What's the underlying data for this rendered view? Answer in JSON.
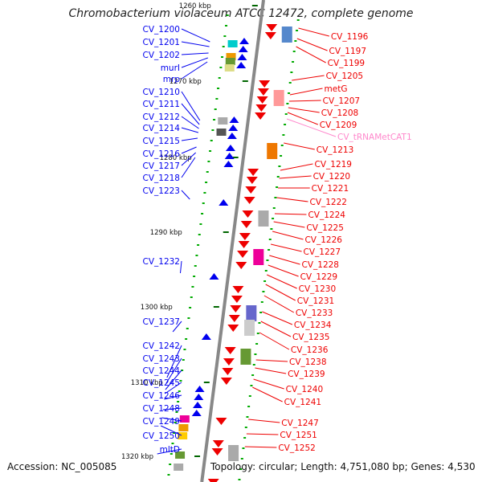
{
  "title": "Chromobacterium violaceum ATCC 12472, complete genome",
  "accession": "Accession: NC_005085",
  "summary": "Topology: circular; Length: 4,751,080 bp; Genes: 4,530",
  "colors": {
    "reverse": "#0000ee",
    "forward": "#ee0000",
    "trna": "#ff88cc",
    "backbone": "#888888"
  },
  "ticks": [
    "1260 kbp",
    "1270 kbp",
    "1280 kbp",
    "1290 kbp",
    "1300 kbp",
    "1310 kbp",
    "1320 kbp"
  ],
  "left_labels": [
    "CV_1200",
    "CV_1201",
    "CV_1202",
    "murI",
    "mrp",
    "CV_1210",
    "CV_1211",
    "CV_1212",
    "CV_1214",
    "CV_1215",
    "CV_1216",
    "CV_1217",
    "CV_1218",
    "CV_1223",
    "CV_1232",
    "CV_1237",
    "CV_1242",
    "CV_1243",
    "CV_1244",
    "CV_1245",
    "CV_1246",
    "CV_1248",
    "CV_1249",
    "CV_1250",
    "mltD"
  ],
  "right_labels": [
    "CV_1196",
    "CV_1197",
    "CV_1199",
    "CV_1205",
    "metG",
    "CV_1207",
    "CV_1208",
    "CV_1209",
    "CV_tRNAMetCAT1",
    "CV_1213",
    "CV_1219",
    "CV_1220",
    "CV_1221",
    "CV_1222",
    "CV_1224",
    "CV_1225",
    "CV_1226",
    "CV_1227",
    "CV_1228",
    "CV_1229",
    "CV_1230",
    "CV_1231",
    "CV_1233",
    "CV_1234",
    "CV_1235",
    "CV_1236",
    "CV_1238",
    "CV_1239",
    "CV_1240",
    "CV_1241",
    "CV_1247",
    "CV_1251",
    "CV_1252"
  ]
}
